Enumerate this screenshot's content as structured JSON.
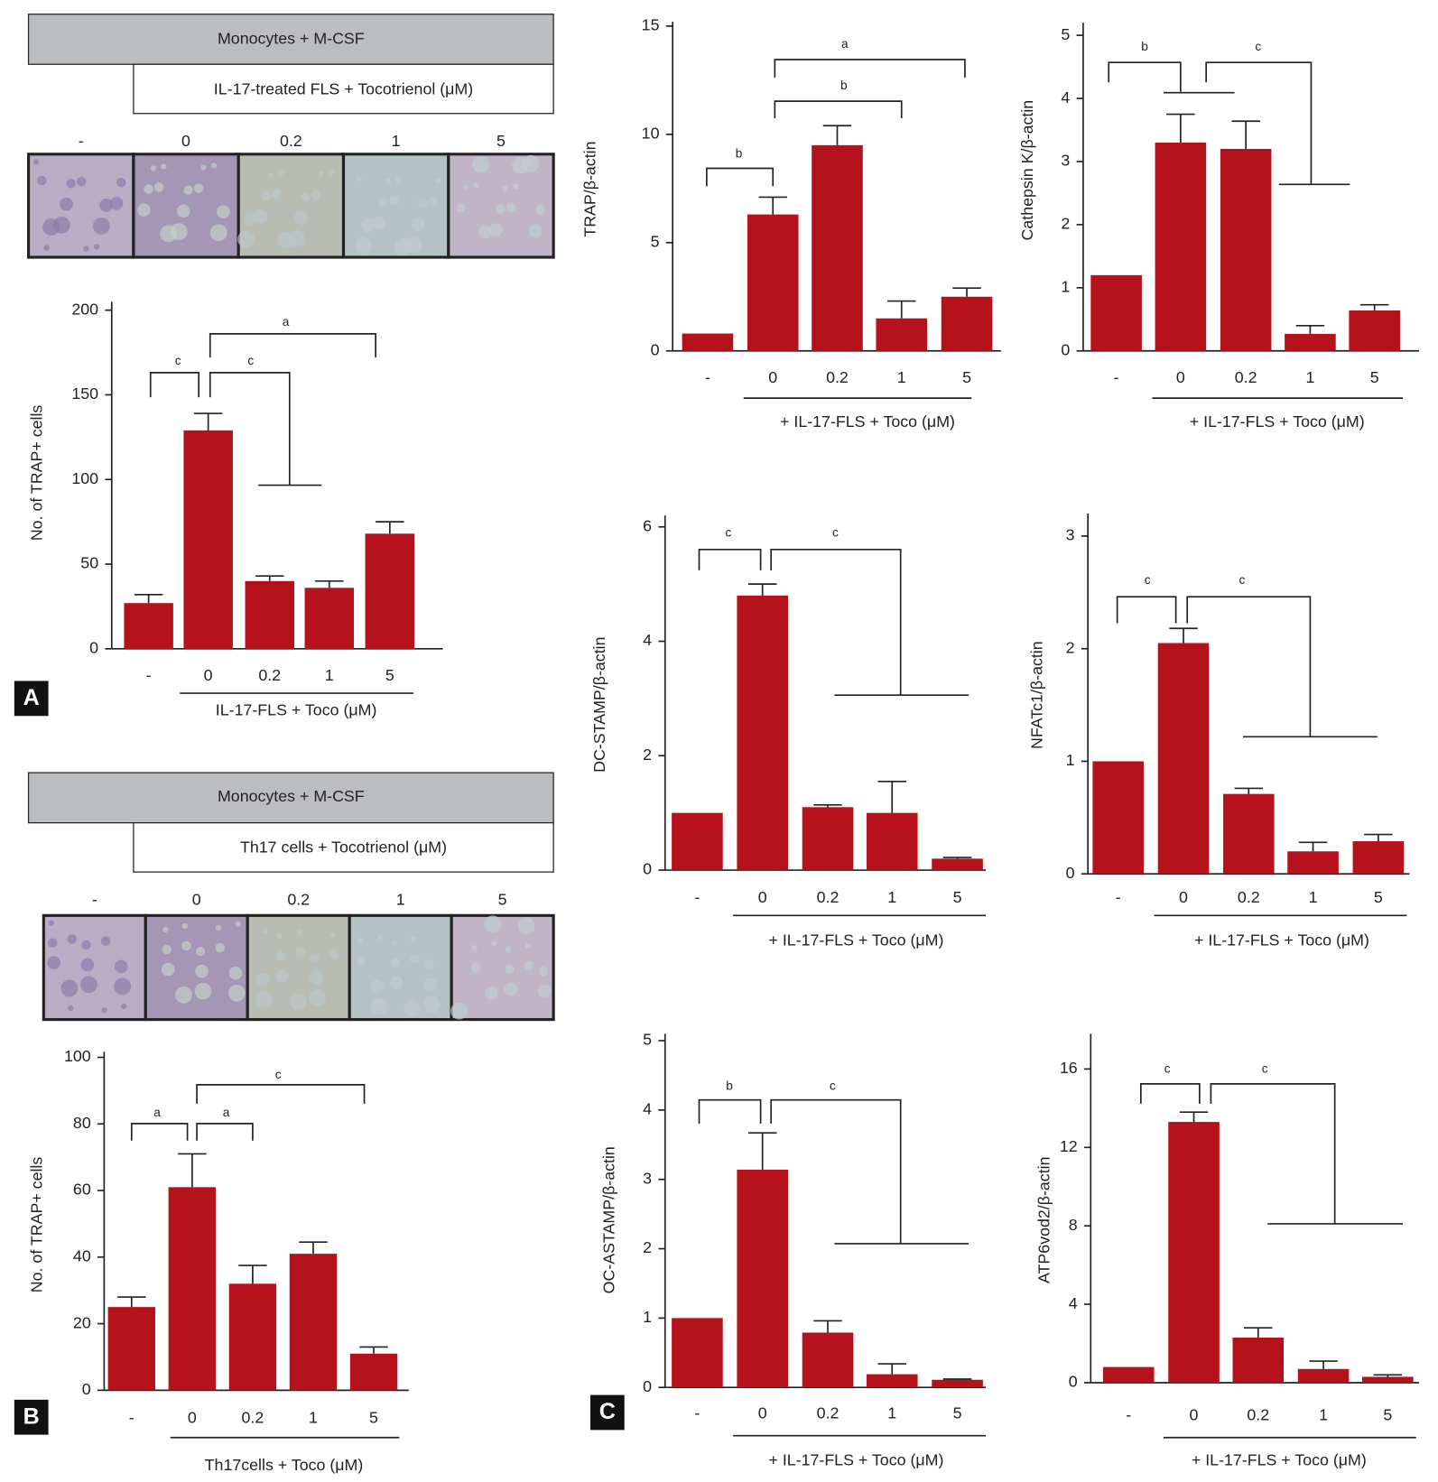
{
  "chart_data": [
    {
      "type": "bar",
      "panel_label": "A",
      "header": [
        "Monocytes + M-CSF",
        "IL-17-treated FLS + Tocotrienol (μM)"
      ],
      "ylabel": "No. of TRAP+ cells",
      "xlabel": "IL-17-FLS + Toco (μM)",
      "categories": [
        "-",
        "0",
        "0.2",
        "1",
        "5"
      ],
      "values": [
        27,
        129,
        40,
        36,
        68
      ],
      "errors": [
        5,
        10,
        3,
        4,
        7
      ],
      "color": "#b5121b",
      "ylim": [
        0,
        205
      ],
      "yticks": [
        0,
        50,
        100,
        150,
        200
      ],
      "significance": [
        "c",
        "c",
        "a"
      ]
    },
    {
      "type": "bar",
      "panel_label": "B",
      "header": [
        "Monocytes + M-CSF",
        "Th17 cells + Tocotrienol (μM)"
      ],
      "ylabel": "No. of TRAP+ cells",
      "xlabel": "Th17cells + Toco (μM)",
      "categories": [
        "-",
        "0",
        "0.2",
        "1",
        "5"
      ],
      "values": [
        25,
        61,
        32,
        41,
        11
      ],
      "errors": [
        3,
        10,
        5.5,
        3.5,
        2
      ],
      "color": "#b5121b",
      "ylim": [
        0,
        101.7
      ],
      "yticks": [
        0,
        20,
        40,
        60,
        80,
        100
      ],
      "significance": [
        "a",
        "a",
        "c"
      ]
    },
    {
      "type": "bar",
      "ylabel": "TRAP/β-actin",
      "xlabel": "+ IL-17-FLS + Toco (μM)",
      "categories": [
        "-",
        "0",
        "0.2",
        "1",
        "5"
      ],
      "values": [
        0.8,
        6.3,
        9.5,
        1.5,
        2.5
      ],
      "errors": [
        null,
        0.8,
        0.9,
        0.8,
        0.4
      ],
      "color": "#b5121b",
      "ylim": [
        0,
        15.2
      ],
      "yticks": [
        0,
        5,
        10,
        15
      ],
      "significance": [
        "b",
        "b",
        "a"
      ]
    },
    {
      "type": "bar",
      "ylabel": "Cathepsin K/β-actin",
      "xlabel": "+ IL-17-FLS + Toco (μM)",
      "categories": [
        "-",
        "0",
        "0.2",
        "1",
        "5"
      ],
      "values": [
        1.2,
        3.3,
        3.2,
        0.27,
        0.64
      ],
      "errors": [
        null,
        0.45,
        0.44,
        0.13,
        0.09
      ],
      "color": "#b5121b",
      "ylim": [
        0,
        5.2
      ],
      "yticks": [
        0,
        1,
        2,
        3,
        4,
        5
      ],
      "significance": [
        "b",
        "c"
      ]
    },
    {
      "type": "bar",
      "ylabel": "DC-STAMP/β-actin",
      "xlabel": "+ IL-17-FLS + Toco (μM)",
      "categories": [
        "-",
        "0",
        "0.2",
        "1",
        "5"
      ],
      "values": [
        1.0,
        4.8,
        1.1,
        1.0,
        0.2
      ],
      "errors": [
        null,
        0.2,
        0.04,
        0.55,
        0.02
      ],
      "color": "#b5121b",
      "ylim": [
        0,
        6.2
      ],
      "yticks": [
        0,
        2,
        4,
        6
      ],
      "significance": [
        "c",
        "c"
      ]
    },
    {
      "type": "bar",
      "ylabel": "NFATc1/β-actin",
      "xlabel": "+ IL-17-FLS + Toco (μM)",
      "categories": [
        "-",
        "0",
        "0.2",
        "1",
        "5"
      ],
      "values": [
        1.0,
        2.05,
        0.71,
        0.2,
        0.29
      ],
      "errors": [
        null,
        0.13,
        0.05,
        0.08,
        0.06
      ],
      "color": "#b5121b",
      "ylim": [
        0,
        3.2
      ],
      "yticks": [
        0,
        1,
        2,
        3
      ],
      "significance": [
        "c",
        "c"
      ]
    },
    {
      "type": "bar",
      "panel_label": "C",
      "ylabel": "OC-ASTAMP/β-actin",
      "xlabel": "+ IL-17-FLS + Toco (μM)",
      "categories": [
        "-",
        "0",
        "0.2",
        "1",
        "5"
      ],
      "values": [
        1.0,
        3.14,
        0.79,
        0.19,
        0.11
      ],
      "errors": [
        null,
        0.53,
        0.17,
        0.15,
        0.01
      ],
      "color": "#b5121b",
      "ylim": [
        0,
        5.1
      ],
      "yticks": [
        0,
        1,
        2,
        3,
        4,
        5
      ],
      "significance": [
        "b",
        "c"
      ]
    },
    {
      "type": "bar",
      "ylabel": "ATP6vod2/β-actin",
      "xlabel": "+ IL-17-FLS + Toco (μM)",
      "categories": [
        "-",
        "0",
        "0.2",
        "1",
        "5"
      ],
      "values": [
        0.8,
        13.3,
        2.3,
        0.7,
        0.3
      ],
      "errors": [
        null,
        0.5,
        0.5,
        0.4,
        0.1
      ],
      "color": "#b5121b",
      "ylim": [
        0,
        17.8
      ],
      "yticks": [
        0,
        4,
        8,
        12,
        16
      ],
      "significance": [
        "c",
        "c"
      ]
    }
  ]
}
